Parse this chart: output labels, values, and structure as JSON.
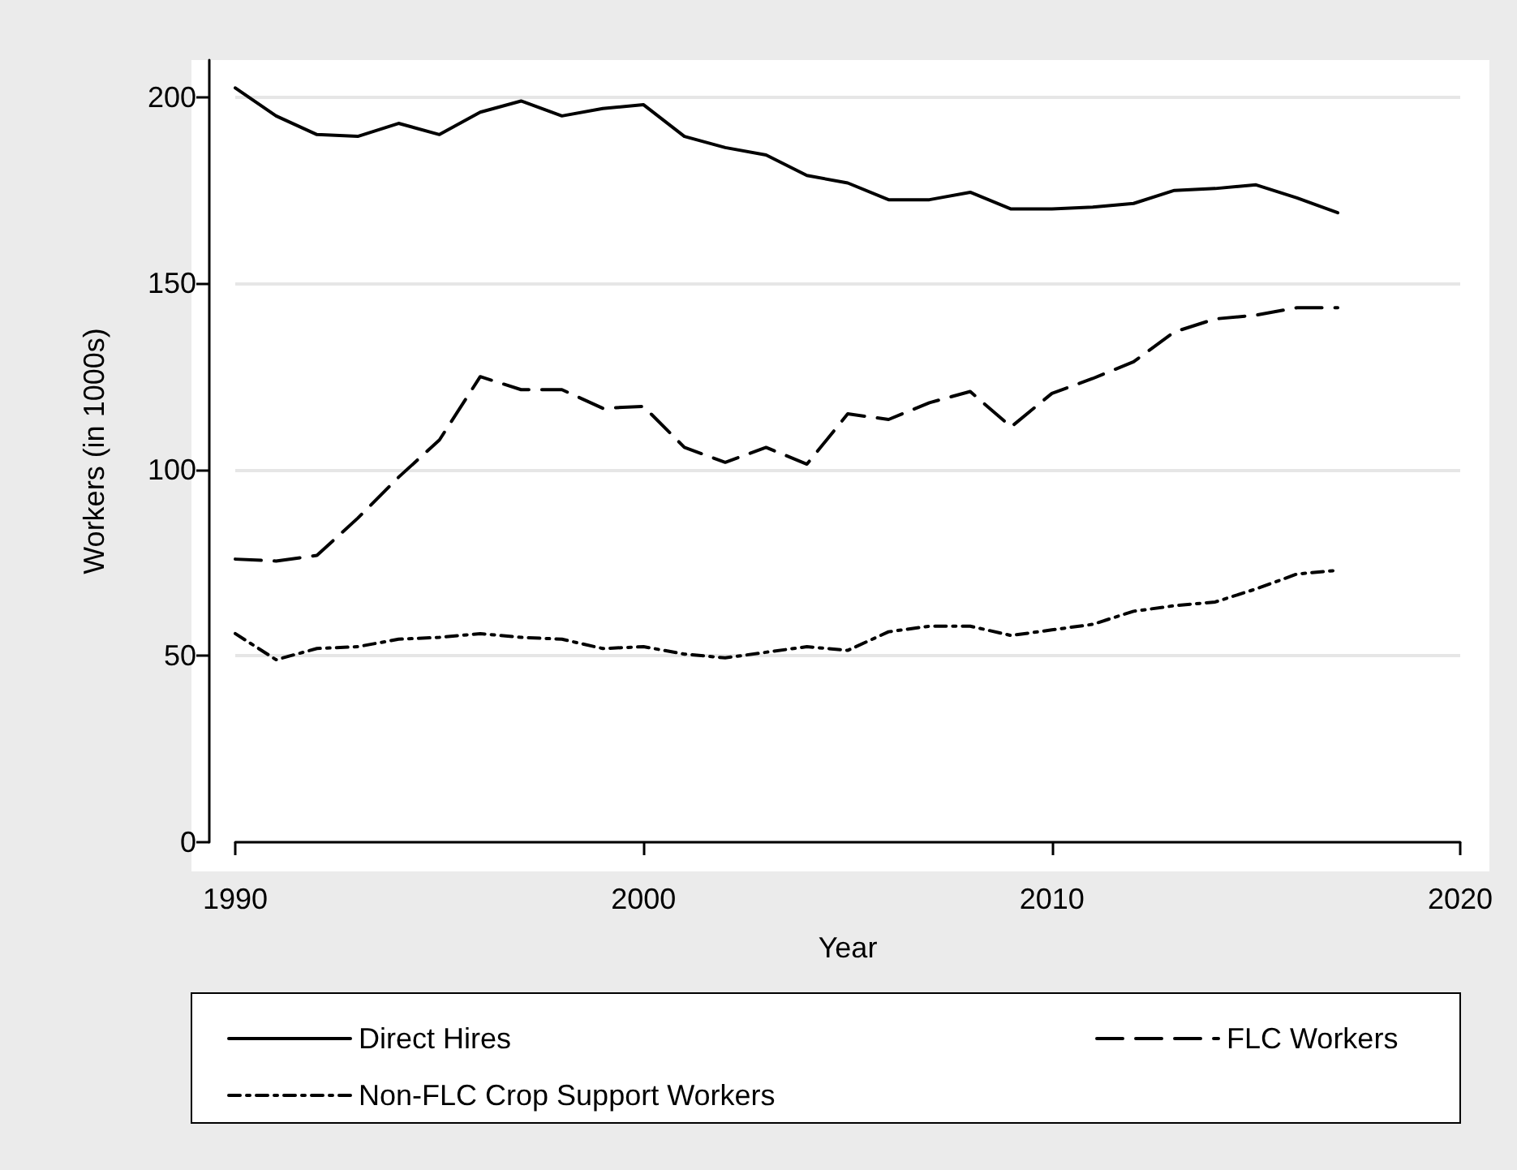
{
  "chart_data": {
    "type": "line",
    "xlabel": "Year",
    "ylabel": "Workers (in 1000s)",
    "x": [
      1990,
      1991,
      1992,
      1993,
      1994,
      1995,
      1996,
      1997,
      1998,
      1999,
      2000,
      2001,
      2002,
      2003,
      2004,
      2005,
      2006,
      2007,
      2008,
      2009,
      2010,
      2011,
      2012,
      2013,
      2014,
      2015,
      2016,
      2017
    ],
    "series": [
      {
        "name": "Direct Hires",
        "color": "#000000",
        "line_style": "solid",
        "values": [
          202.5,
          195,
          190,
          189.5,
          193,
          190,
          196,
          199,
          195,
          197,
          198,
          189.5,
          186.5,
          184.5,
          179,
          177,
          172.5,
          172.5,
          174.5,
          170,
          170,
          170.5,
          171.5,
          175,
          175.5,
          176.5,
          173,
          169
        ]
      },
      {
        "name": "FLC Workers",
        "color": "#000000",
        "line_style": "dashed",
        "values": [
          76,
          75.5,
          77,
          87,
          98,
          108,
          125,
          121.5,
          121.5,
          116.5,
          117,
          106,
          102,
          106,
          101.5,
          115,
          113.5,
          118,
          121,
          111.5,
          120.5,
          124.5,
          129,
          137,
          140.5,
          141.5,
          143.5,
          143.5
        ]
      },
      {
        "name": "Non-FLC Crop Support Workers",
        "color": "#000000",
        "line_style": "dashdot",
        "values": [
          56,
          49,
          52,
          52.5,
          54.5,
          55,
          56,
          55,
          54.5,
          52,
          52.5,
          50.5,
          49.5,
          51,
          52.5,
          51.5,
          56.5,
          58,
          58,
          55.5,
          57,
          58.5,
          62,
          63.5,
          64.5,
          68,
          72,
          73
        ]
      }
    ],
    "xlim": [
      1990,
      2020
    ],
    "xticks": [
      1990,
      2000,
      2010,
      2020
    ],
    "ylim": [
      0,
      210
    ],
    "yticks": [
      0,
      50,
      100,
      150,
      200
    ],
    "grid": "y",
    "legend": "bottom",
    "marker": "none"
  }
}
